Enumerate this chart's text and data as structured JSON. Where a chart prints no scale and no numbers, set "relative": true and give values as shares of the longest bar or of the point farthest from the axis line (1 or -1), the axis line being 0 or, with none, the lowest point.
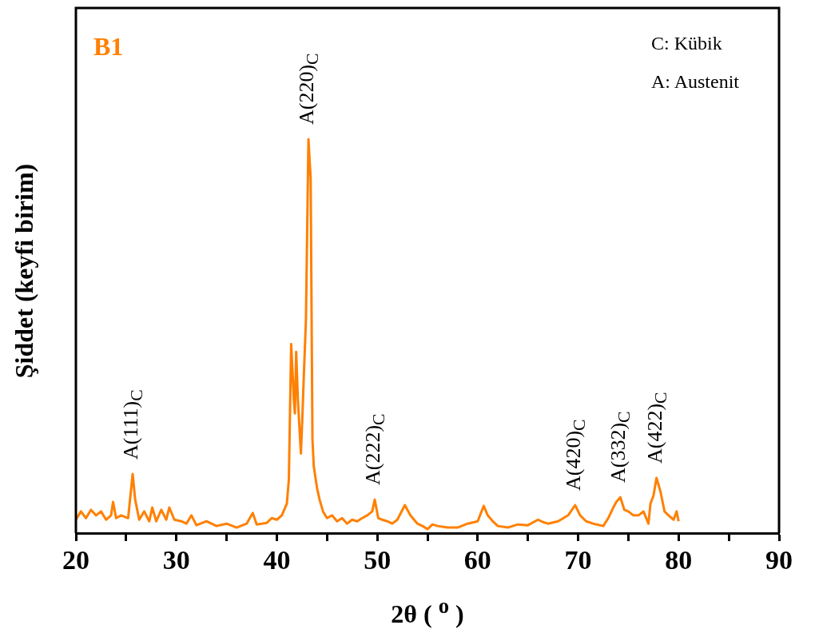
{
  "chart_data": {
    "type": "line",
    "title": "B1",
    "xlabel": "2θ ( $^{o}$ )",
    "ylabel": "Şiddet (keyfi birim)",
    "relative": true,
    "xlim": [
      20,
      90
    ],
    "xticks": [
      20,
      {
        "value": 25,
        "label": null
      },
      30,
      {
        "value": 35,
        "label": null
      },
      40,
      {
        "value": 45,
        "label": null
      },
      50,
      {
        "value": 55,
        "label": null
      },
      60,
      {
        "value": 65,
        "label": null
      },
      70,
      {
        "value": 75,
        "label": null
      },
      80,
      {
        "value": 85,
        "label": null
      },
      90
    ],
    "grid": false,
    "legend": false,
    "marker": "none",
    "line_style": "solid",
    "annotations": [
      "C: Kübik",
      "A: Austenit",
      {
        "text": "A(111)$_{C}$",
        "x": 25.65,
        "y": 0.15
      },
      {
        "text": "A(220)$_{C}$",
        "x": 43.15,
        "y": 1
      },
      {
        "text": "A(222)$_{C}$",
        "x": 49.75,
        "y": 0.085
      },
      {
        "text": "A(420)$_{C}$",
        "x": 69.7,
        "y": 0.071
      },
      {
        "text": "A(332)$_{C}$",
        "x": 74.2,
        "y": 0.091
      },
      {
        "text": "A(422)$_{C}$",
        "x": 77.8,
        "y": 0.14
      }
    ],
    "series": [
      {
        "color": "#ff8000",
        "x": [
          20,
          20.5,
          21,
          21.5,
          22,
          22.5,
          23,
          23.5,
          23.7,
          24,
          24.5,
          25.2,
          25.65,
          25.9,
          26.3,
          26.8,
          27.3,
          27.6,
          28,
          28.5,
          29,
          29.3,
          29.8,
          30.5,
          31,
          31.5,
          32,
          33,
          34,
          35,
          36,
          37,
          37.6,
          38,
          38.5,
          39,
          39.5,
          40,
          40.5,
          41,
          41.2,
          41.43,
          41.7,
          41.8,
          41.93,
          42.1,
          42.4,
          42.55,
          42.67,
          42.9,
          43.15,
          43.37,
          43.55,
          43.68,
          44,
          44.26,
          44.6,
          45,
          45.5,
          46,
          46.5,
          47,
          47.5,
          48,
          48.5,
          49,
          49.5,
          49.75,
          50.1,
          50.5,
          51,
          51.5,
          52,
          52.75,
          53.3,
          54,
          54.5,
          55,
          55.5,
          56,
          57,
          58,
          59,
          60,
          60.6,
          61,
          61.5,
          62,
          63,
          64,
          65,
          66,
          66.5,
          67,
          68,
          69,
          69.7,
          70.2,
          70.8,
          71.5,
          72.5,
          73,
          73.5,
          73.8,
          74.2,
          74.6,
          75,
          75.5,
          76,
          76.5,
          77,
          77.2,
          77.5,
          77.8,
          78.2,
          78.6,
          79,
          79.5,
          79.8,
          80
        ],
        "values": [
          0.034,
          0.055,
          0.038,
          0.059,
          0.045,
          0.055,
          0.034,
          0.045,
          0.079,
          0.038,
          0.045,
          0.038,
          0.15,
          0.085,
          0.034,
          0.055,
          0.03,
          0.065,
          0.03,
          0.059,
          0.034,
          0.065,
          0.034,
          0.03,
          0.024,
          0.045,
          0.02,
          0.03,
          0.018,
          0.024,
          0.014,
          0.024,
          0.051,
          0.022,
          0.024,
          0.026,
          0.038,
          0.034,
          0.045,
          0.075,
          0.136,
          0.48,
          0.338,
          0.304,
          0.46,
          0.338,
          0.202,
          0.298,
          0.385,
          0.54,
          1,
          0.9,
          0.237,
          0.17,
          0.115,
          0.085,
          0.055,
          0.038,
          0.045,
          0.03,
          0.038,
          0.024,
          0.034,
          0.03,
          0.038,
          0.045,
          0.055,
          0.085,
          0.038,
          0.034,
          0.03,
          0.024,
          0.034,
          0.071,
          0.045,
          0.024,
          0.018,
          0.01,
          0.022,
          0.018,
          0.014,
          0.014,
          0.024,
          0.03,
          0.069,
          0.045,
          0.03,
          0.018,
          0.014,
          0.022,
          0.02,
          0.034,
          0.028,
          0.024,
          0.03,
          0.045,
          0.071,
          0.045,
          0.03,
          0.024,
          0.018,
          0.038,
          0.065,
          0.079,
          0.091,
          0.059,
          0.055,
          0.045,
          0.045,
          0.055,
          0.024,
          0.075,
          0.095,
          0.14,
          0.105,
          0.055,
          0.045,
          0.034,
          0.055,
          0.03
        ]
      }
    ]
  }
}
